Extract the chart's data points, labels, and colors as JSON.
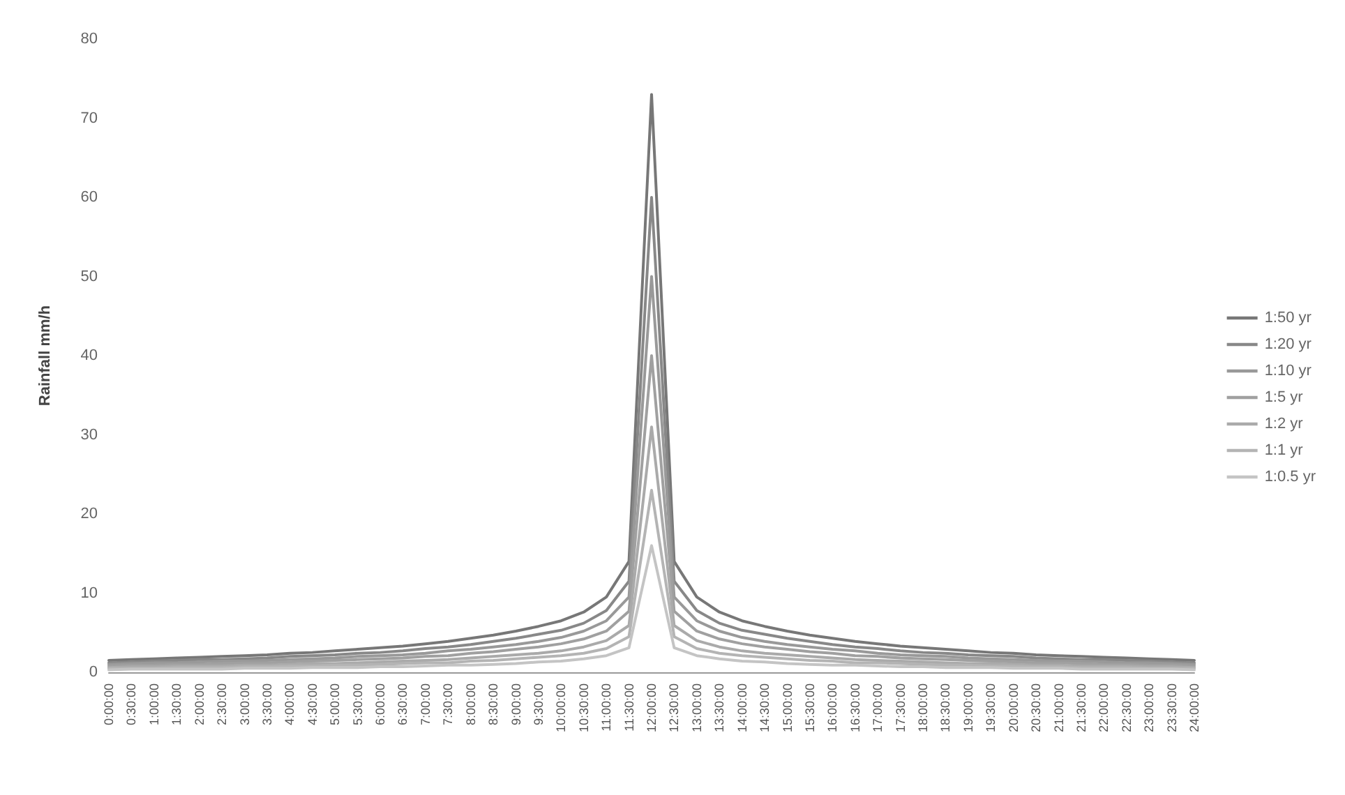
{
  "chart_data": {
    "type": "line",
    "ylabel": "Rainfall mm/h",
    "categories": [
      "0:00:00",
      "0:30:00",
      "1:00:00",
      "1:30:00",
      "2:00:00",
      "2:30:00",
      "3:00:00",
      "3:30:00",
      "4:00:00",
      "4:30:00",
      "5:00:00",
      "5:30:00",
      "6:00:00",
      "6:30:00",
      "7:00:00",
      "7:30:00",
      "8:00:00",
      "8:30:00",
      "9:00:00",
      "9:30:00",
      "10:00:00",
      "10:30:00",
      "11:00:00",
      "11:30:00",
      "12:00:00",
      "12:30:00",
      "13:00:00",
      "13:30:00",
      "14:00:00",
      "14:30:00",
      "15:00:00",
      "15:30:00",
      "16:00:00",
      "16:30:00",
      "17:00:00",
      "17:30:00",
      "18:00:00",
      "18:30:00",
      "19:00:00",
      "19:30:00",
      "20:00:00",
      "20:30:00",
      "21:00:00",
      "21:30:00",
      "22:00:00",
      "22:30:00",
      "23:00:00",
      "23:30:00",
      "24:00:00"
    ],
    "series": [
      {
        "name": "1:50 yr",
        "color": "#777777",
        "values": [
          1.5,
          1.6,
          1.7,
          1.8,
          1.9,
          2.0,
          2.1,
          2.2,
          2.4,
          2.5,
          2.7,
          2.9,
          3.1,
          3.3,
          3.6,
          3.9,
          4.3,
          4.7,
          5.2,
          5.8,
          6.5,
          7.6,
          9.5,
          14,
          73,
          14,
          9.5,
          7.6,
          6.5,
          5.8,
          5.2,
          4.7,
          4.3,
          3.9,
          3.6,
          3.3,
          3.1,
          2.9,
          2.7,
          2.5,
          2.4,
          2.2,
          2.1,
          2.0,
          1.9,
          1.8,
          1.7,
          1.6,
          1.5
        ]
      },
      {
        "name": "1:20 yr",
        "color": "#888888",
        "values": [
          1.2,
          1.3,
          1.4,
          1.5,
          1.6,
          1.6,
          1.7,
          1.8,
          2.0,
          2.1,
          2.2,
          2.4,
          2.5,
          2.7,
          3.0,
          3.2,
          3.5,
          3.9,
          4.3,
          4.8,
          5.3,
          6.2,
          7.8,
          11.5,
          60,
          11.5,
          7.8,
          6.2,
          5.3,
          4.8,
          4.3,
          3.9,
          3.5,
          3.2,
          3.0,
          2.7,
          2.5,
          2.4,
          2.2,
          2.1,
          2.0,
          1.8,
          1.7,
          1.6,
          1.6,
          1.5,
          1.4,
          1.3,
          1.2
        ]
      },
      {
        "name": "1:10 yr",
        "color": "#999999",
        "values": [
          1.0,
          1.1,
          1.2,
          1.2,
          1.3,
          1.4,
          1.4,
          1.5,
          1.6,
          1.7,
          1.8,
          2.0,
          2.1,
          2.2,
          2.4,
          2.7,
          2.9,
          3.2,
          3.5,
          3.9,
          4.4,
          5.2,
          6.5,
          9.5,
          50,
          9.5,
          6.5,
          5.2,
          4.4,
          3.9,
          3.5,
          3.2,
          2.9,
          2.7,
          2.4,
          2.2,
          2.1,
          2.0,
          1.8,
          1.7,
          1.6,
          1.5,
          1.4,
          1.4,
          1.3,
          1.2,
          1.2,
          1.1,
          1.0
        ]
      },
      {
        "name": "1:5 yr",
        "color": "#a0a0a0",
        "values": [
          0.8,
          0.9,
          0.9,
          1.0,
          1.0,
          1.1,
          1.2,
          1.2,
          1.3,
          1.4,
          1.5,
          1.6,
          1.7,
          1.8,
          2.0,
          2.1,
          2.4,
          2.6,
          2.9,
          3.2,
          3.6,
          4.2,
          5.2,
          7.7,
          40,
          7.7,
          5.2,
          4.2,
          3.6,
          3.2,
          2.9,
          2.6,
          2.4,
          2.1,
          2.0,
          1.8,
          1.7,
          1.6,
          1.5,
          1.4,
          1.3,
          1.2,
          1.2,
          1.1,
          1.0,
          1.0,
          0.9,
          0.9,
          0.8
        ]
      },
      {
        "name": "1:2 yr",
        "color": "#aaaaaa",
        "values": [
          0.6,
          0.7,
          0.7,
          0.8,
          0.8,
          0.8,
          0.9,
          0.9,
          1.0,
          1.1,
          1.1,
          1.2,
          1.3,
          1.4,
          1.5,
          1.6,
          1.8,
          2.0,
          2.2,
          2.4,
          2.7,
          3.2,
          4.0,
          5.9,
          31,
          5.9,
          4.0,
          3.2,
          2.7,
          2.4,
          2.2,
          2.0,
          1.8,
          1.6,
          1.5,
          1.4,
          1.3,
          1.2,
          1.1,
          1.1,
          1.0,
          0.9,
          0.9,
          0.8,
          0.8,
          0.8,
          0.7,
          0.7,
          0.6
        ]
      },
      {
        "name": "1:1 yr",
        "color": "#b4b4b4",
        "values": [
          0.5,
          0.5,
          0.5,
          0.6,
          0.6,
          0.6,
          0.7,
          0.7,
          0.8,
          0.8,
          0.9,
          0.9,
          1.0,
          1.1,
          1.2,
          1.2,
          1.4,
          1.5,
          1.7,
          1.9,
          2.1,
          2.4,
          3.0,
          4.5,
          23,
          4.5,
          3.0,
          2.4,
          2.1,
          1.9,
          1.7,
          1.5,
          1.4,
          1.2,
          1.2,
          1.1,
          1.0,
          0.9,
          0.9,
          0.8,
          0.8,
          0.7,
          0.7,
          0.6,
          0.6,
          0.6,
          0.5,
          0.5,
          0.5
        ]
      },
      {
        "name": "1:0.5 yr",
        "color": "#c4c4c4",
        "values": [
          0.3,
          0.4,
          0.4,
          0.4,
          0.4,
          0.4,
          0.5,
          0.5,
          0.5,
          0.6,
          0.6,
          0.6,
          0.7,
          0.7,
          0.8,
          0.9,
          0.9,
          1.0,
          1.1,
          1.3,
          1.4,
          1.7,
          2.1,
          3.1,
          16,
          3.1,
          2.1,
          1.7,
          1.4,
          1.3,
          1.1,
          1.0,
          0.9,
          0.9,
          0.8,
          0.7,
          0.7,
          0.6,
          0.6,
          0.6,
          0.5,
          0.5,
          0.5,
          0.4,
          0.4,
          0.4,
          0.4,
          0.4,
          0.3
        ]
      }
    ],
    "ylim": [
      0,
      80
    ],
    "yticks": [
      0,
      10,
      20,
      30,
      40,
      50,
      60,
      70,
      80
    ],
    "grid": false,
    "legend": "right",
    "marker": "none",
    "line_style": "solid"
  }
}
